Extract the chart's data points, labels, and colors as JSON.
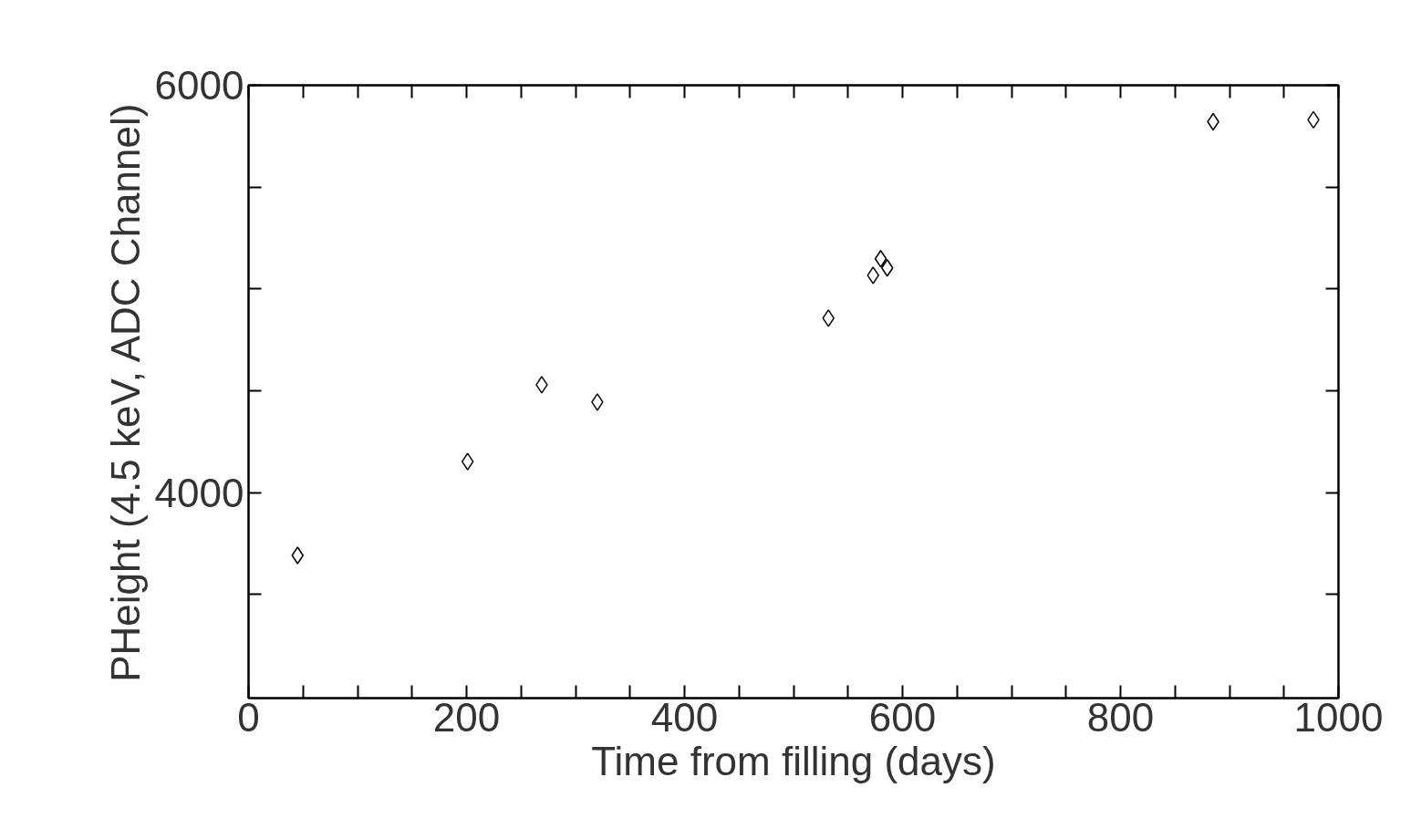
{
  "chart_data": {
    "type": "scatter",
    "xlabel": "Time from filling (days)",
    "ylabel": "PHeight (4.5 keV, ADC Channel)",
    "x": [
      45,
      201,
      269,
      320,
      532,
      573,
      580,
      586,
      885,
      977
    ],
    "values": [
      3691,
      4152,
      4529,
      4444,
      4856,
      5067,
      5148,
      5103,
      5821,
      5830
    ],
    "color": "#000000",
    "marker": "diamond",
    "grid": false,
    "xlim": [
      0,
      1000
    ],
    "xticks": [
      0,
      {
        "value": 50,
        "label": null
      },
      {
        "value": 100,
        "label": null
      },
      {
        "value": 150,
        "label": null
      },
      200,
      {
        "value": 250,
        "label": null
      },
      {
        "value": 300,
        "label": null
      },
      {
        "value": 350,
        "label": null
      },
      400,
      {
        "value": 450,
        "label": null
      },
      {
        "value": 500,
        "label": null
      },
      {
        "value": 550,
        "label": null
      },
      600,
      {
        "value": 650,
        "label": null
      },
      {
        "value": 700,
        "label": null
      },
      {
        "value": 750,
        "label": null
      },
      800,
      {
        "value": 850,
        "label": null
      },
      {
        "value": 900,
        "label": null
      },
      {
        "value": 950,
        "label": null
      },
      1000
    ],
    "ylim": [
      2990,
      6000
    ],
    "yticks": [
      {
        "value": 3500,
        "label": null
      },
      4000,
      {
        "value": 4500,
        "label": null
      },
      {
        "value": 5000,
        "label": null
      },
      {
        "value": 5500,
        "label": null
      },
      6000
    ]
  }
}
